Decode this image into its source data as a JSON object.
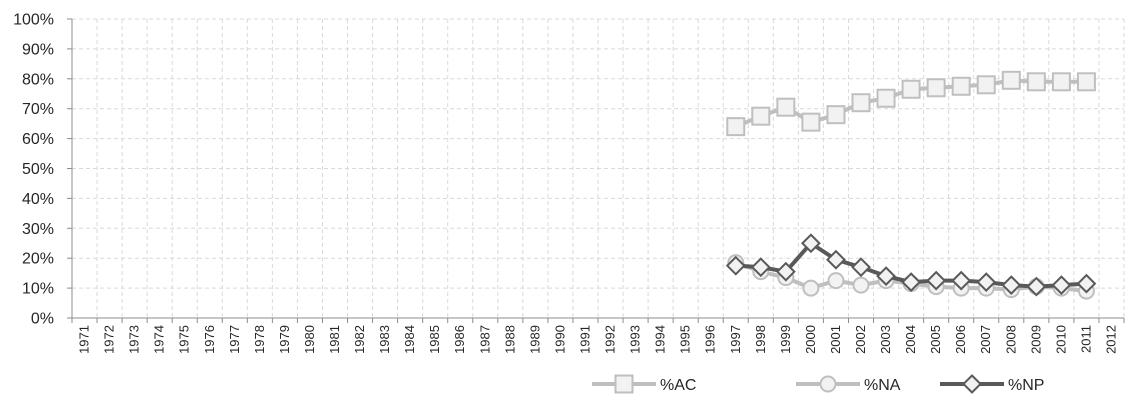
{
  "chart_data": {
    "type": "line",
    "title": "",
    "xlabel": "",
    "ylabel": "",
    "categories": [
      "1971",
      "1972",
      "1973",
      "1974",
      "1975",
      "1976",
      "1977",
      "1978",
      "1979",
      "1980",
      "1981",
      "1982",
      "1983",
      "1984",
      "1985",
      "1986",
      "1987",
      "1988",
      "1989",
      "1990",
      "1991",
      "1992",
      "1993",
      "1994",
      "1995",
      "1996",
      "1997",
      "1998",
      "1999",
      "2000",
      "2001",
      "2002",
      "2003",
      "2004",
      "2005",
      "2006",
      "2007",
      "2008",
      "2009",
      "2010",
      "2011",
      "2012"
    ],
    "y_ticks": [
      "0%",
      "10%",
      "20%",
      "30%",
      "40%",
      "50%",
      "60%",
      "70%",
      "80%",
      "90%",
      "100%"
    ],
    "ylim": [
      0,
      100
    ],
    "grid": true,
    "legend_position": "bottom",
    "series": [
      {
        "name": "%AC",
        "color": "#bfbfbf",
        "marker": "square",
        "x": [
          "1997",
          "1998",
          "1999",
          "2000",
          "2001",
          "2002",
          "2003",
          "2004",
          "2005",
          "2006",
          "2007",
          "2008",
          "2009",
          "2010",
          "2011"
        ],
        "values": [
          64,
          67.5,
          70.5,
          65.5,
          68,
          72,
          73.5,
          76.5,
          77,
          77.5,
          78,
          79.5,
          79,
          79,
          79
        ]
      },
      {
        "name": "%NA",
        "color": "#bfbfbf",
        "marker": "circle",
        "x": [
          "1997",
          "1998",
          "1999",
          "2000",
          "2001",
          "2002",
          "2003",
          "2004",
          "2005",
          "2006",
          "2007",
          "2008",
          "2009",
          "2010",
          "2011"
        ],
        "values": [
          18.5,
          15.5,
          13.5,
          10,
          12.5,
          11,
          12.5,
          11.5,
          10.5,
          10,
          10,
          9.5,
          10.5,
          10,
          9
        ]
      },
      {
        "name": "%NP",
        "color": "#595959",
        "marker": "diamond",
        "x": [
          "1997",
          "1998",
          "1999",
          "2000",
          "2001",
          "2002",
          "2003",
          "2004",
          "2005",
          "2006",
          "2007",
          "2008",
          "2009",
          "2010",
          "2011"
        ],
        "values": [
          17.5,
          17,
          15.5,
          25,
          19.5,
          17,
          14,
          12,
          12.5,
          12.5,
          12,
          11,
          10.5,
          11,
          11.5
        ]
      }
    ]
  }
}
